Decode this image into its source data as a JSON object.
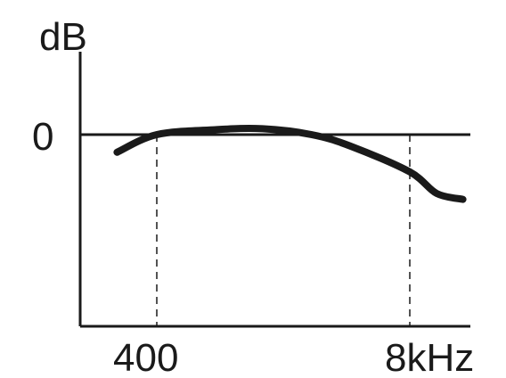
{
  "chart_data": {
    "type": "line",
    "ylabel": "dB",
    "xlabel": "",
    "y_tick_labels": [
      "0"
    ],
    "x_tick_labels": [
      "400",
      "8kHz"
    ],
    "x_scale": "log",
    "grid": false,
    "ink_color": "#1a1a1a",
    "reference_lines": {
      "horizontal_db": 0,
      "vertical_hz": [
        400,
        8000
      ]
    },
    "series": [
      {
        "x": [
          250,
          400,
          800,
          1400,
          2500,
          4000,
          8000,
          11000,
          15000
        ],
        "values": [
          -0.9,
          0.0,
          0.25,
          0.3,
          0.0,
          -0.6,
          -1.9,
          -3.0,
          -3.3
        ]
      }
    ]
  }
}
